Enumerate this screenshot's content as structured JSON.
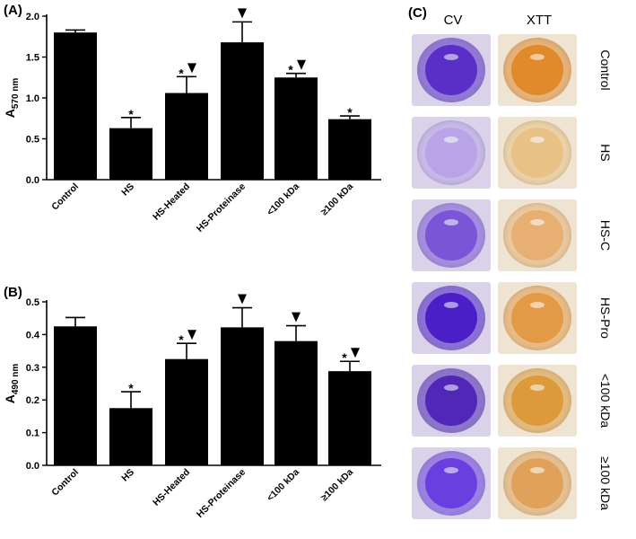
{
  "chart_data": [
    {
      "type": "bar",
      "panel": "(A)",
      "ylabel_main": "A",
      "ylabel_sub": "570 nm",
      "ylim": [
        0,
        2.0
      ],
      "yticks": [
        "0.0",
        "0.5",
        "1.0",
        "1.5",
        "2.0"
      ],
      "categories": [
        "Control",
        "HS",
        "HS-Heated",
        "HS-Proteinase",
        "<100 kDa",
        "≥100 kDa"
      ],
      "values": [
        1.8,
        0.63,
        1.06,
        1.68,
        1.25,
        0.74
      ],
      "errors": [
        0.03,
        0.13,
        0.2,
        0.25,
        0.05,
        0.04
      ],
      "star": [
        false,
        true,
        true,
        false,
        true,
        true
      ],
      "triangle": [
        false,
        false,
        true,
        true,
        true,
        false
      ]
    },
    {
      "type": "bar",
      "panel": "(B)",
      "ylabel_main": "A",
      "ylabel_sub": "490 nm",
      "ylim": [
        0,
        0.5
      ],
      "yticks": [
        "0.0",
        "0.1",
        "0.2",
        "0.3",
        "0.4",
        "0.5"
      ],
      "categories": [
        "Control",
        "HS",
        "HS-Heated",
        "HS-Proteinase",
        "<100 kDa",
        "≥100 kDa"
      ],
      "values": [
        0.425,
        0.175,
        0.325,
        0.422,
        0.38,
        0.288
      ],
      "errors": [
        0.027,
        0.05,
        0.048,
        0.06,
        0.047,
        0.03
      ],
      "star": [
        false,
        true,
        true,
        false,
        false,
        true
      ],
      "triangle": [
        false,
        false,
        true,
        true,
        true,
        true
      ]
    }
  ],
  "markers": {
    "star": "*",
    "triangle": "▼"
  },
  "panelC": {
    "label": "(C)",
    "col_cv": "CV",
    "col_xtt": "XTT",
    "rows": [
      {
        "label": "Control",
        "cv_color": "#5a2fc8",
        "xtt_color": "#e08a2c"
      },
      {
        "label": "HS",
        "cv_color": "#b9a4e8",
        "xtt_color": "#e8c187"
      },
      {
        "label": "HS-C",
        "cv_color": "#7a55d8",
        "xtt_color": "#e7b072"
      },
      {
        "label": "HS-Pro",
        "cv_color": "#4a1fc8",
        "xtt_color": "#e39a46"
      },
      {
        "label": "<100 kDa",
        "cv_color": "#5127b8",
        "xtt_color": "#dc9a3a"
      },
      {
        "label": "≥100 kDa",
        "cv_color": "#6a3fe0",
        "xtt_color": "#e0a25a"
      }
    ],
    "well_bg_cv": "#d9d2e8",
    "well_bg_xtt": "#efe4d2"
  }
}
